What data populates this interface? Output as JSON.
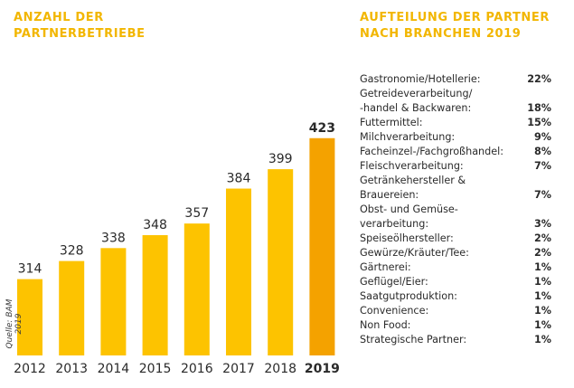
{
  "left_title": "ANZAHL DER PARTNERBETRIEBE",
  "right_title": "AUFTEILUNG DER PARTNER NACH BRANCHEN 2019",
  "source": "Quelle: BAM 2019",
  "colors": {
    "heading": "#f2b600",
    "bar": "#fdc300",
    "bar_highlight": "#f4a200"
  },
  "chart_data": {
    "type": "bar",
    "title": "ANZAHL DER PARTNERBETRIEBE",
    "categories": [
      "2012",
      "2013",
      "2014",
      "2015",
      "2016",
      "2017",
      "2018",
      "2019"
    ],
    "values": [
      314,
      328,
      338,
      348,
      357,
      384,
      399,
      423
    ],
    "highlight": "2019",
    "xlabel": "",
    "ylabel": ""
  },
  "sectors": [
    {
      "label": [
        "Gastronomie/Hotellerie:"
      ],
      "pct": "22%"
    },
    {
      "label": [
        "Getreideverarbeitung/",
        "-handel & Backwaren:"
      ],
      "pct": "18%"
    },
    {
      "label": [
        "Futtermittel:"
      ],
      "pct": "15%"
    },
    {
      "label": [
        "Milchverarbeitung:"
      ],
      "pct": "9%"
    },
    {
      "label": [
        "Facheinzel-/Fachgroßhandel:"
      ],
      "pct": "8%"
    },
    {
      "label": [
        "Fleischverarbeitung:"
      ],
      "pct": "7%"
    },
    {
      "label": [
        "Getränkehersteller &",
        "Brauereien:"
      ],
      "pct": "7%"
    },
    {
      "label": [
        "Obst- und Gemüse-",
        "verarbeitung:"
      ],
      "pct": "3%"
    },
    {
      "label": [
        "Speiseölhersteller:"
      ],
      "pct": "2%"
    },
    {
      "label": [
        "Gewürze/Kräuter/Tee:"
      ],
      "pct": "2%"
    },
    {
      "label": [
        "Gärtnerei:"
      ],
      "pct": "1%"
    },
    {
      "label": [
        "Geflügel/Eier:"
      ],
      "pct": "1%"
    },
    {
      "label": [
        "Saatgutproduktion:"
      ],
      "pct": "1%"
    },
    {
      "label": [
        "Convenience:"
      ],
      "pct": "1%"
    },
    {
      "label": [
        "Non Food:"
      ],
      "pct": "1%"
    },
    {
      "label": [
        "Strategische Partner:"
      ],
      "pct": "1%"
    }
  ]
}
